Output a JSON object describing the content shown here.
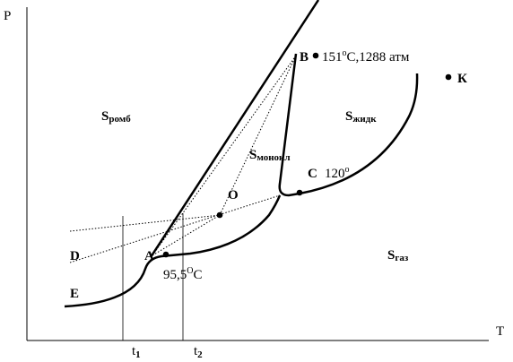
{
  "axes": {
    "y": "P",
    "x": "T",
    "ticks": [
      {
        "main": "t",
        "sub": "1"
      },
      {
        "main": "t",
        "sub": "2"
      }
    ]
  },
  "regions": [
    {
      "main": "S",
      "sub": "ромб"
    },
    {
      "main": "S",
      "sub": "монокл"
    },
    {
      "main": "S",
      "sub": "жидк"
    },
    {
      "main": "S",
      "sub": "газ"
    }
  ],
  "points": {
    "A": "A",
    "B": "B",
    "C": "C",
    "D": "D",
    "E": "E",
    "O": "O",
    "K": "К"
  },
  "annotations": {
    "B": {
      "value": "151",
      "sup": "o",
      "rest": "C,1288 атм"
    },
    "C": {
      "value": "120",
      "sup": "o"
    },
    "A": {
      "value": "95,5",
      "sup": "O",
      "rest": "C"
    }
  }
}
